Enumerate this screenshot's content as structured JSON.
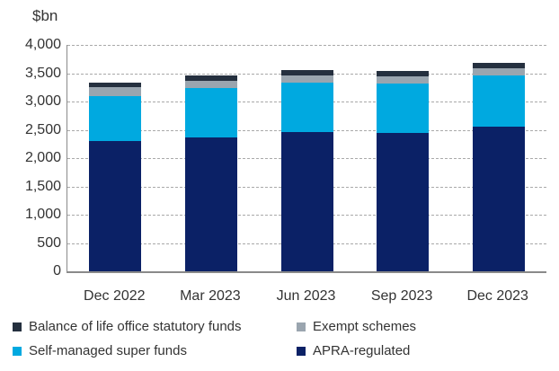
{
  "chart_data": {
    "type": "bar",
    "stacked": true,
    "unit_label": "$bn",
    "categories": [
      "Dec 2022",
      "Mar 2023",
      "Jun 2023",
      "Sep 2023",
      "Dec 2023"
    ],
    "series": [
      {
        "name": "APRA-regulated",
        "color": "#0B2166",
        "values": [
          2295,
          2370,
          2460,
          2445,
          2555
        ]
      },
      {
        "name": "Self-managed super funds",
        "color": "#00A9E0",
        "values": [
          805,
          870,
          875,
          875,
          905
        ]
      },
      {
        "name": "Exempt schemes",
        "color": "#9AA5AF",
        "values": [
          150,
          130,
          130,
          125,
          130
        ]
      },
      {
        "name": "Balance of life office statutory funds",
        "color": "#25303F",
        "values": [
          90,
          90,
          90,
          95,
          95
        ]
      }
    ],
    "ylim": [
      0,
      4000
    ],
    "ytick_interval": 500,
    "ytick_labels": [
      "0",
      "500",
      "1,000",
      "1,500",
      "2,000",
      "2,500",
      "3,000",
      "3,500",
      "4,000"
    ],
    "grid": "horizontal-dashed",
    "legend_position": "bottom",
    "legend": [
      {
        "label": "Balance of life office statutory funds",
        "color": "#25303F"
      },
      {
        "label": "Exempt schemes",
        "color": "#9AA5AF"
      },
      {
        "label": "Self-managed super funds",
        "color": "#00A9E0"
      },
      {
        "label": "APRA-regulated",
        "color": "#0B2166"
      }
    ]
  },
  "colors": {
    "background": "#FFFFFF",
    "gridline": "#A9A9A9",
    "axis": "#8A8A8A",
    "text": "#333333"
  }
}
